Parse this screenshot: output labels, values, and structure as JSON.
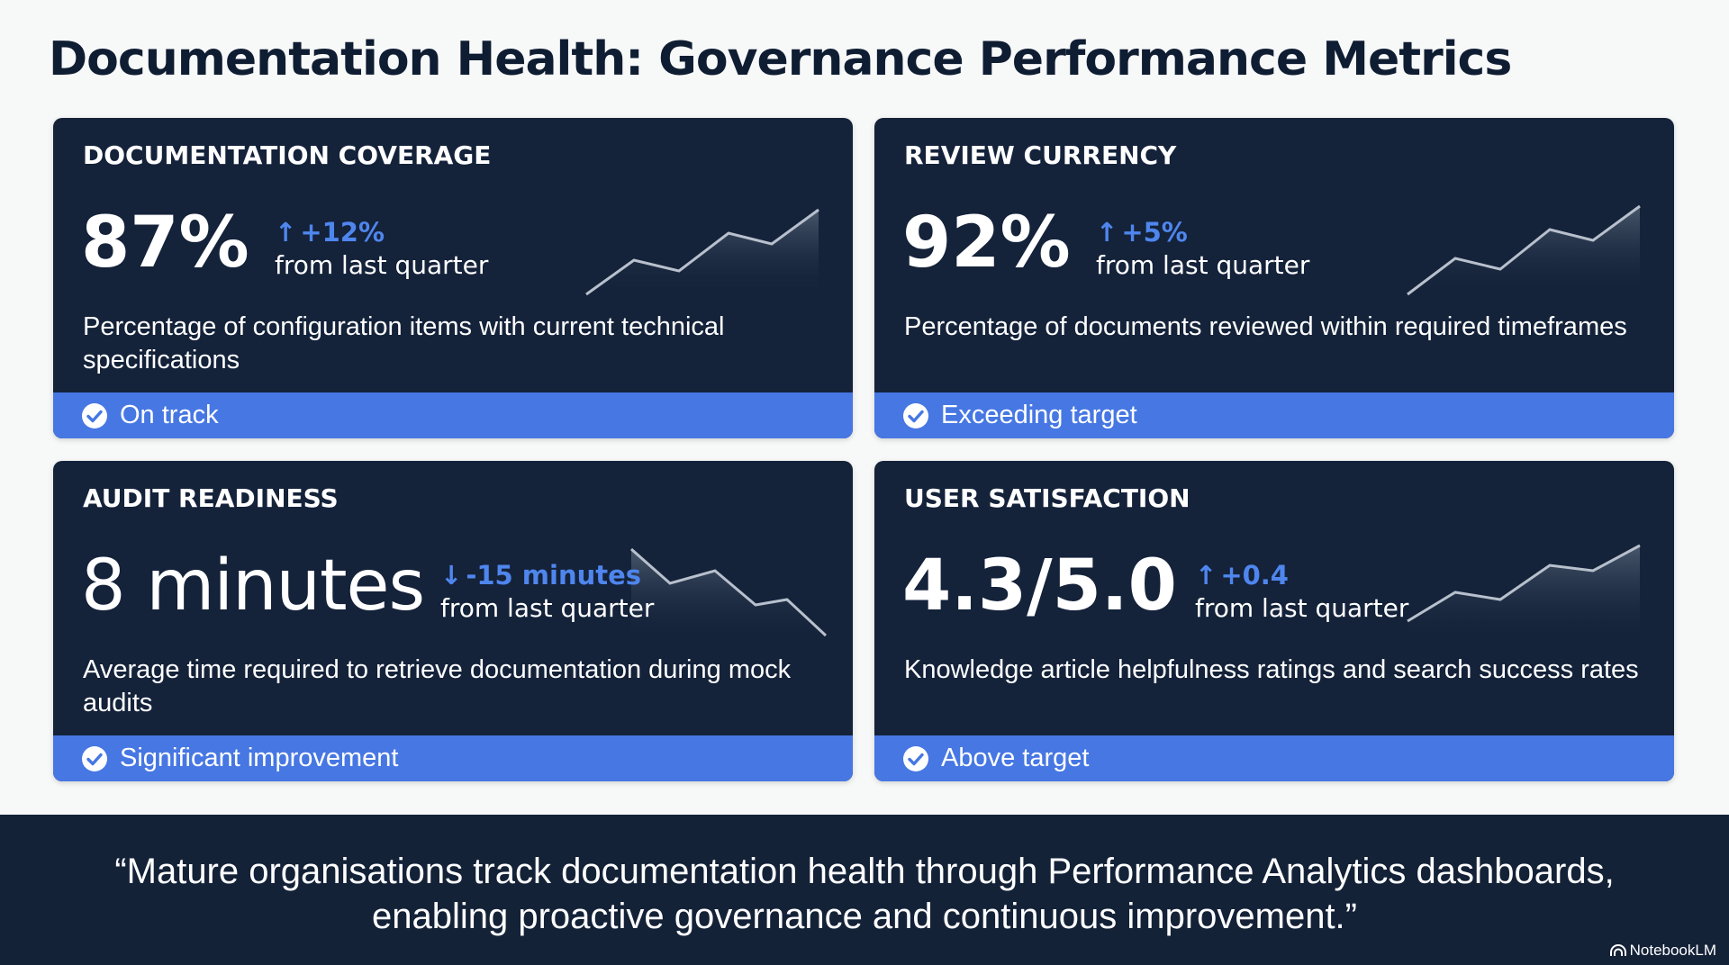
{
  "page": {
    "title": "Documentation Health: Governance Performance Metrics"
  },
  "colors": {
    "page_background": "#f7f8f8",
    "card_background": "#14223a",
    "accent_blue": "#4677e3",
    "delta_blue": "#4f86ee",
    "title_text": "#0f1d33"
  },
  "cards": [
    {
      "title": "DOCUMENTATION COVERAGE",
      "value": "87%",
      "delta": {
        "direction": "up",
        "arrow": "↑",
        "value": "+12%",
        "label": "from last quarter"
      },
      "trend": "up",
      "description": "Percentage of configuration items with current technical specifications",
      "status": {
        "icon": "check-circle-icon",
        "label": "On track"
      }
    },
    {
      "title": "REVIEW CURRENCY",
      "value": "92%",
      "delta": {
        "direction": "up",
        "arrow": "↑",
        "value": "+5%",
        "label": "from last quarter"
      },
      "trend": "up",
      "description": "Percentage of documents reviewed within required timeframes",
      "status": {
        "icon": "check-circle-icon",
        "label": "Exceeding target"
      }
    },
    {
      "title": "AUDIT READINESS",
      "value": "8 minutes",
      "delta": {
        "direction": "down",
        "arrow": "↓",
        "value": "-15 minutes",
        "label": "from last quarter"
      },
      "trend": "down",
      "description": "Average time required to retrieve documentation during mock audits",
      "status": {
        "icon": "check-circle-icon",
        "label": "Significant improvement"
      }
    },
    {
      "title": "USER SATISFACTION",
      "value": "4.3/5.0",
      "delta": {
        "direction": "up",
        "arrow": "↑",
        "value": "+0.4",
        "label": "from last quarter"
      },
      "trend": "up",
      "description": "Knowledge article helpfulness ratings and search success rates",
      "status": {
        "icon": "check-circle-icon",
        "label": "Above target"
      }
    }
  ],
  "footer": {
    "quote": "“Mature organisations track documentation health through Performance Analytics dashboards, enabling proactive governance and continuous improvement.”",
    "brand": "NotebookLM"
  }
}
